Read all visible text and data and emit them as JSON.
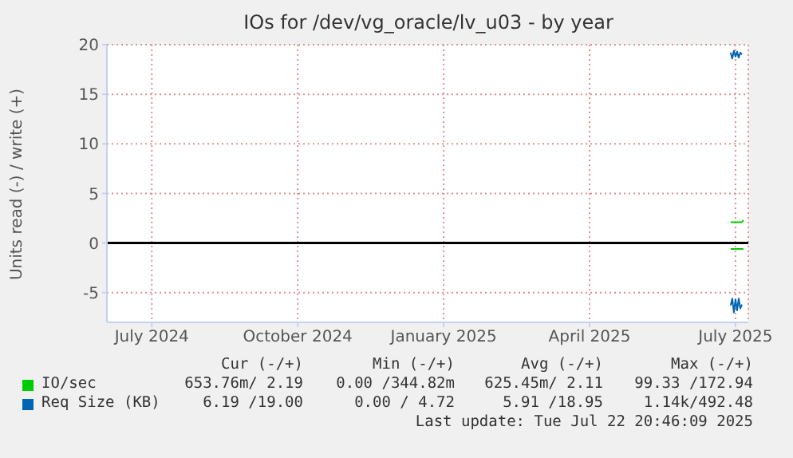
{
  "chart_data": {
    "type": "line",
    "title": "IOs for /dev/vg_oracle/lv_u03 - by year",
    "ylabel": "Units read (-) / write (+)",
    "xlim": [
      "2024-06-19",
      "2025-07-24"
    ],
    "xticks": [
      {
        "value": "2024-07-17",
        "label": "July 2024"
      },
      {
        "value": "2024-10-16",
        "label": "October 2024"
      },
      {
        "value": "2025-01-15",
        "label": "January 2025"
      },
      {
        "value": "2025-04-16",
        "label": "April 2025"
      },
      {
        "value": "2025-07-16",
        "label": "July 2025"
      }
    ],
    "ylim": [
      -8,
      20
    ],
    "yticks": [
      -5,
      0,
      5,
      10,
      15,
      20
    ],
    "grid": true,
    "legend": "bottom",
    "marker": "none",
    "line_style": "solid",
    "ref_lines": [
      {
        "axis": "y",
        "value": 0,
        "color": "#000000"
      }
    ],
    "series": [
      {
        "name": "IO/sec",
        "color": "#00cc00",
        "x": [
          "2025-07-13",
          "2025-07-15",
          "2025-07-17",
          "2025-07-19",
          "2025-07-20",
          "2025-07-21"
        ],
        "values": [
          2.1,
          2.1,
          2.1,
          2.1,
          2.1,
          2.3
        ]
      },
      {
        "color": "#00cb00",
        "x": [
          "2025-07-13",
          "2025-07-15",
          "2025-07-17",
          "2025-07-19",
          "2025-07-21"
        ],
        "values": [
          -0.6,
          -0.6,
          -0.6,
          -0.6,
          -0.6
        ]
      },
      {
        "name": "Req Size (KB)",
        "color": "#0066b3",
        "x": [
          "2025-07-13",
          "2025-07-14",
          "2025-07-15",
          "2025-07-16",
          "2025-07-17",
          "2025-07-18",
          "2025-07-19",
          "2025-07-20"
        ],
        "values": [
          19.2,
          18.6,
          19.4,
          18.8,
          19.3,
          18.7,
          19.2,
          19.0
        ]
      },
      {
        "color": "#0066b3",
        "x": [
          "2025-07-13",
          "2025-07-14",
          "2025-07-15",
          "2025-07-16",
          "2025-07-17",
          "2025-07-18",
          "2025-07-19",
          "2025-07-20"
        ],
        "values": [
          -6.3,
          -5.6,
          -7.0,
          -5.7,
          -6.8,
          -5.6,
          -6.6,
          -6.2
        ]
      }
    ],
    "annotations": [
      "Cur (-/+)",
      "Min (-/+)",
      "Avg (-/+)",
      "Max (-/+)",
      "653.76m/ 2.19",
      "0.00 /344.82m",
      "625.45m/ 2.11",
      "99.33 /172.94",
      "6.19 /19.00",
      "0.00 / 4.72",
      "5.91 /18.95",
      "1.14k/492.48",
      "Last update: Tue Jul 22 20:46:09 2025"
    ]
  }
}
